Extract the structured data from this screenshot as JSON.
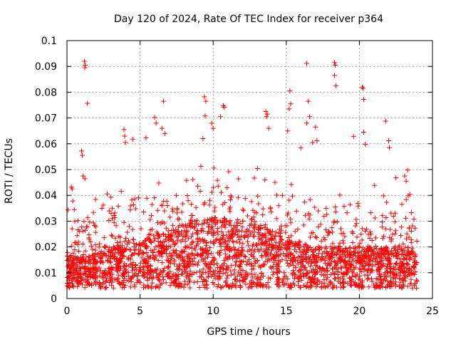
{
  "chart_data": {
    "type": "scatter",
    "title": "Day 120 of 2024, Rate Of TEC Index for receiver p364",
    "xlabel": "GPS time / hours",
    "ylabel": "ROTI / TECUs",
    "xlim": [
      0,
      25
    ],
    "ylim": [
      0,
      0.1
    ],
    "x_ticks": [
      0,
      5,
      10,
      15,
      20,
      25
    ],
    "x_tick_labels": [
      "0",
      "5",
      "10",
      "15",
      "20",
      "25"
    ],
    "y_ticks": [
      0,
      0.01,
      0.02,
      0.03,
      0.04,
      0.05,
      0.06,
      0.07,
      0.08,
      0.09,
      0.1
    ],
    "y_tick_labels": [
      "0",
      "0.01",
      "0.02",
      "0.03",
      "0.04",
      "0.05",
      "0.06",
      "0.07",
      "0.08",
      "0.09",
      "0.1"
    ],
    "grid": true,
    "marker": "+",
    "color": "#ff0000",
    "series": [
      {
        "name": "ROTI",
        "points": [
          [
            1.2,
            0.092
          ],
          [
            1.25,
            0.0905
          ],
          [
            1.22,
            0.0895
          ],
          [
            1.4,
            0.0757
          ],
          [
            16.4,
            0.0912
          ],
          [
            18.3,
            0.0915
          ],
          [
            18.35,
            0.0905
          ],
          [
            18.3,
            0.0865
          ],
          [
            18.4,
            0.0825
          ],
          [
            20.2,
            0.082
          ],
          [
            20.25,
            0.0815
          ],
          [
            20.3,
            0.0772
          ],
          [
            15.25,
            0.0805
          ],
          [
            15.3,
            0.0755
          ],
          [
            15.2,
            0.0735
          ],
          [
            15.1,
            0.065
          ],
          [
            9.4,
            0.0782
          ],
          [
            9.5,
            0.0765
          ],
          [
            9.45,
            0.0708
          ],
          [
            6.6,
            0.0765
          ],
          [
            6.0,
            0.0702
          ],
          [
            6.1,
            0.068
          ],
          [
            6.5,
            0.066
          ],
          [
            6.7,
            0.064
          ],
          [
            10.7,
            0.0748
          ],
          [
            10.75,
            0.0742
          ],
          [
            10.5,
            0.0705
          ],
          [
            13.6,
            0.0725
          ],
          [
            13.7,
            0.0715
          ],
          [
            13.65,
            0.0705
          ],
          [
            13.8,
            0.066
          ],
          [
            16.5,
            0.0765
          ],
          [
            16.6,
            0.0705
          ],
          [
            16.4,
            0.068
          ],
          [
            21.8,
            0.0688
          ],
          [
            22.0,
            0.0612
          ],
          [
            22.05,
            0.0585
          ],
          [
            3.9,
            0.0655
          ],
          [
            3.95,
            0.063
          ],
          [
            4.5,
            0.0618
          ],
          [
            4.0,
            0.0605
          ],
          [
            9.9,
            0.068
          ],
          [
            10.0,
            0.066
          ],
          [
            9.3,
            0.062
          ],
          [
            17.0,
            0.0665
          ],
          [
            17.1,
            0.0612
          ],
          [
            16.8,
            0.0605
          ],
          [
            19.6,
            0.0628
          ],
          [
            20.3,
            0.0645
          ],
          [
            20.4,
            0.0598
          ],
          [
            1.0,
            0.0572
          ],
          [
            1.05,
            0.0555
          ],
          [
            1.1,
            0.0475
          ],
          [
            23.3,
            0.0498
          ],
          [
            23.1,
            0.0475
          ],
          [
            23.2,
            0.0455
          ],
          [
            22.5,
            0.0468
          ],
          [
            0.3,
            0.0432
          ],
          [
            0.35,
            0.0425
          ],
          [
            0.4,
            0.0378
          ],
          [
            0.5,
            0.0345
          ]
        ]
      }
    ]
  }
}
